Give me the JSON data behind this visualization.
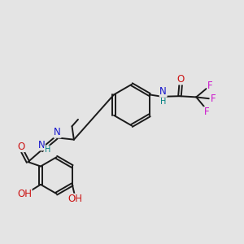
{
  "bg_color": "#e4e4e4",
  "bond_color": "#1a1a1a",
  "bond_lw": 1.4,
  "atom_colors": {
    "N": "#1414cc",
    "O": "#cc1414",
    "F": "#cc14cc",
    "H_teal": "#008080"
  },
  "fs": 8.5,
  "fs_small": 7.0,
  "xlim": [
    0,
    10
  ],
  "ylim": [
    0,
    10
  ]
}
